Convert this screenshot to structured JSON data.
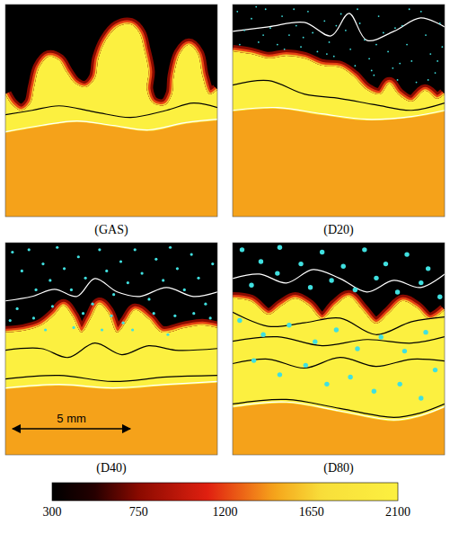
{
  "chart_data": {
    "type": "heatmap",
    "xlim": [
      0,
      9
    ],
    "ylim": [
      9,
      0
    ],
    "tick_labels": false,
    "temperature": {
      "unburnt": 300,
      "front": [
        1650,
        1200,
        750
      ],
      "burnt": 2100,
      "products": 1450
    },
    "colorbar": {
      "range": [
        300,
        2100
      ],
      "ticks": [
        300,
        750,
        1200,
        1650,
        2100
      ]
    },
    "scale_bar": {
      "length": 5,
      "label": "5 mm"
    },
    "panels": [
      {
        "title": "(GAS)",
        "front": {
          "x": [
            0,
            0.3,
            0.68,
            1.06,
            1.22,
            1.44,
            1.83,
            2.28,
            2.59,
            2.97,
            3.42,
            3.8,
            3.95,
            4.26,
            4.75,
            5.32,
            5.7,
            5.89,
            6.08,
            6.01,
            6.27,
            6.77,
            7.07,
            7.15,
            7.41,
            7.79,
            8.17,
            8.37,
            8.67,
            9
          ],
          "y": [
            3.8,
            4.26,
            4.49,
            4.18,
            3.5,
            2.66,
            2.21,
            2.36,
            2.85,
            3.35,
            3.5,
            3.12,
            2.28,
            1.52,
            0.95,
            0.84,
            1.22,
            1.9,
            2.85,
            3.61,
            4.18,
            4.26,
            3.8,
            3.04,
            2.09,
            1.71,
            2.09,
            3.04,
            3.8,
            3.61
          ]
        },
        "products_edge": {
          "x": [
            0,
            1.52,
            3.04,
            4.56,
            6.08,
            7.6,
            9
          ],
          "y": [
            5.45,
            5.18,
            4.99,
            5.18,
            5.37,
            5.07,
            4.92
          ]
        },
        "contours": [
          {
            "color": "black",
            "x": [
              0,
              1.14,
              2.28,
              3.8,
              5.32,
              6.84,
              7.98,
              9
            ],
            "y": [
              4.68,
              4.49,
              4.3,
              4.56,
              4.79,
              4.49,
              4.18,
              4.37
            ]
          },
          {
            "color": "white",
            "x": [
              0,
              1.52,
              3.04,
              4.56,
              6.08,
              7.6,
              9
            ],
            "y": [
              5.4,
              5.13,
              4.94,
              5.13,
              5.32,
              5.02,
              4.87
            ]
          }
        ]
      },
      {
        "title": "(D20)",
        "front": {
          "x": [
            0,
            0.76,
            1.52,
            2.28,
            3.04,
            3.8,
            4.56,
            5.13,
            5.7,
            6.27,
            6.65,
            7.03,
            7.6,
            8.17,
            8.67,
            9
          ],
          "y": [
            1.98,
            2.09,
            2.28,
            2.17,
            2.28,
            2.59,
            2.66,
            3.04,
            3.61,
            3.8,
            3.35,
            3.8,
            4.11,
            3.65,
            3.99,
            3.8
          ]
        },
        "products_edge": {
          "x": [
            0,
            1.9,
            3.8,
            5.7,
            7.6,
            9
          ],
          "y": [
            4.54,
            4.42,
            4.69,
            4.92,
            4.8,
            4.54
          ]
        },
        "contours": [
          {
            "color": "white",
            "x": [
              0,
              1.52,
              3.04,
              4.18,
              4.94,
              5.7,
              6.84,
              7.98,
              9
            ],
            "y": [
              1.14,
              0.95,
              0.76,
              1.33,
              0.38,
              1.52,
              1.14,
              0.57,
              0.95
            ]
          },
          {
            "color": "black",
            "x": [
              0,
              1.52,
              3.04,
              4.56,
              6.08,
              7.6,
              9
            ],
            "y": [
              3.42,
              3.23,
              3.8,
              3.99,
              4.26,
              4.49,
              4.18
            ]
          },
          {
            "color": "white",
            "x": [
              0,
              1.9,
              3.8,
              5.7,
              7.6,
              9
            ],
            "y": [
              4.49,
              4.37,
              4.64,
              4.87,
              4.75,
              4.49
            ]
          }
        ],
        "droplets": {
          "color": "#40e0e0",
          "marker": "small",
          "x": [
            0.2,
            0.5,
            0.8,
            1.1,
            1.4,
            1.6,
            1.9,
            2.1,
            2.4,
            2.7,
            2.9,
            3.2,
            3.4,
            3.6,
            3.9,
            4.1,
            4.3,
            4.6,
            4.8,
            5.0,
            5.2,
            5.4,
            5.6,
            5.8,
            6.0,
            6.2,
            6.4,
            6.6,
            6.8,
            7.0,
            7.2,
            7.4,
            7.6,
            7.8,
            8.0,
            8.2,
            8.4,
            8.6,
            8.8,
            8.9,
            0.3,
            1.0,
            2.2,
            3.0,
            4.4,
            5.3,
            6.1,
            6.9,
            7.5,
            8.3,
            5.9,
            7.1,
            8.7,
            4.0,
            2.6,
            1.3
          ],
          "y": [
            0.3,
            1.1,
            0.6,
            1.6,
            0.2,
            1.0,
            1.7,
            0.5,
            1.3,
            0.9,
            1.8,
            0.3,
            1.2,
            2.0,
            0.7,
            1.6,
            2.2,
            0.4,
            1.1,
            1.9,
            2.6,
            0.8,
            1.5,
            2.3,
            3.0,
            0.5,
            1.2,
            2.0,
            2.7,
            3.2,
            0.9,
            1.7,
            2.4,
            3.3,
            0.3,
            1.3,
            2.1,
            2.9,
            0.8,
            1.8,
            1.7,
            0.1,
            1.9,
            1.4,
            0.9,
            0.2,
            1.7,
            1.0,
            0.2,
            3.2,
            2.8,
            2.5,
            2.4,
            2.1,
            0.2,
            1.3
          ]
        }
      },
      {
        "title": "(D40)",
        "front": {
          "x": [
            0,
            0.76,
            1.52,
            2.09,
            2.47,
            2.85,
            3.23,
            3.61,
            3.99,
            4.37,
            4.75,
            5.13,
            5.51,
            6.08,
            6.65,
            7.6,
            8.37,
            9
          ],
          "y": [
            3.8,
            3.73,
            3.5,
            3.04,
            2.66,
            3.12,
            3.8,
            3.23,
            2.59,
            2.97,
            3.8,
            3.35,
            2.85,
            3.23,
            3.8,
            3.61,
            3.5,
            3.61
          ]
        },
        "products_edge": {
          "x": [
            0,
            2.28,
            4.56,
            6.84,
            9
          ],
          "y": [
            6.21,
            6.06,
            6.21,
            6.06,
            5.94
          ]
        },
        "contours": [
          {
            "color": "white",
            "x": [
              0,
              1.14,
              2.09,
              3.04,
              3.8,
              4.75,
              5.7,
              6.84,
              7.98,
              9
            ],
            "y": [
              2.47,
              2.28,
              1.98,
              2.28,
              1.52,
              2.09,
              2.28,
              1.9,
              2.28,
              2.09
            ]
          },
          {
            "color": "black",
            "x": [
              0,
              1.52,
              2.66,
              3.8,
              4.94,
              6.08,
              7.22,
              9
            ],
            "y": [
              4.56,
              4.49,
              4.87,
              4.26,
              4.75,
              4.37,
              4.56,
              4.49
            ]
          },
          {
            "color": "black",
            "x": [
              0,
              2.28,
              4.56,
              6.84,
              9
            ],
            "y": [
              5.78,
              5.63,
              5.89,
              5.7,
              5.63
            ]
          },
          {
            "color": "white",
            "x": [
              0,
              2.28,
              4.56,
              6.84,
              9
            ],
            "y": [
              6.16,
              6.01,
              6.16,
              6.01,
              5.89
            ]
          }
        ],
        "droplets": {
          "color": "#40e0e0",
          "marker": "medium",
          "x": [
            0.3,
            0.7,
            1.0,
            1.3,
            1.6,
            1.9,
            2.2,
            2.5,
            2.8,
            3.1,
            3.4,
            3.7,
            4.0,
            4.3,
            4.6,
            4.9,
            5.2,
            5.5,
            5.8,
            6.1,
            6.4,
            6.7,
            7.0,
            7.3,
            7.6,
            7.9,
            8.2,
            8.5,
            8.8,
            0.5,
            1.2,
            2.0,
            3.3,
            4.5,
            5.0,
            6.3,
            7.2,
            8.0,
            8.7,
            2.9,
            4.1,
            5.4,
            6.9,
            1.7,
            0.2
          ],
          "y": [
            0.4,
            1.2,
            0.3,
            2.0,
            0.9,
            1.6,
            0.2,
            1.1,
            2.0,
            0.6,
            1.5,
            2.6,
            0.3,
            1.2,
            2.2,
            0.8,
            1.7,
            0.3,
            1.3,
            2.4,
            0.7,
            1.6,
            0.2,
            1.1,
            2.0,
            0.5,
            1.5,
            2.6,
            0.9,
            2.8,
            3.2,
            2.7,
            3.0,
            3.1,
            3.4,
            3.0,
            3.1,
            3.0,
            3.2,
            3.6,
            3.7,
            3.7,
            3.9,
            3.7,
            3.3
          ]
        }
      },
      {
        "title": "(D80)",
        "front": {
          "x": [
            0,
            0.76,
            1.52,
            2.09,
            2.66,
            3.23,
            3.8,
            4.37,
            4.94,
            5.51,
            6.08,
            6.65,
            7.22,
            7.79,
            8.37,
            9
          ],
          "y": [
            2.36,
            2.47,
            3.04,
            2.66,
            2.36,
            2.66,
            3.23,
            2.66,
            2.28,
            2.85,
            3.42,
            2.97,
            2.47,
            2.74,
            3.23,
            2.85
          ]
        },
        "products_edge": {
          "x": [
            0,
            2.28,
            4.56,
            6.84,
            7.98,
            9
          ],
          "y": [
            7.0,
            6.81,
            7.19,
            7.57,
            7.38,
            7.0
          ]
        },
        "contours": [
          {
            "color": "white",
            "x": [
              0,
              1.14,
              2.28,
              3.42,
              4.56,
              5.7,
              6.84,
              7.98,
              9
            ],
            "y": [
              1.52,
              1.33,
              1.71,
              1.14,
              1.52,
              2.09,
              1.6,
              1.9,
              1.33
            ]
          },
          {
            "color": "black",
            "x": [
              0,
              1.52,
              3.04,
              4.56,
              6.08,
              7.6,
              9
            ],
            "y": [
              2.95,
              3.55,
              3.4,
              3.2,
              3.9,
              3.35,
              3.15
            ]
          },
          {
            "color": "black",
            "x": [
              0,
              1.9,
              3.8,
              5.7,
              7.6,
              9
            ],
            "y": [
              4.18,
              3.99,
              4.37,
              4.11,
              4.26,
              3.99
            ]
          },
          {
            "color": "black",
            "x": [
              0,
              1.52,
              3.04,
              4.56,
              6.08,
              7.6,
              9
            ],
            "y": [
              5.13,
              4.94,
              5.32,
              4.87,
              5.25,
              4.94,
              5.02
            ]
          },
          {
            "color": "black",
            "x": [
              0,
              2.28,
              4.56,
              6.84,
              7.98,
              9
            ],
            "y": [
              6.84,
              6.65,
              7.03,
              7.41,
              7.22,
              6.84
            ]
          },
          {
            "color": "white",
            "x": [
              0,
              2.28,
              4.56,
              6.84,
              7.98,
              9
            ],
            "y": [
              6.95,
              6.76,
              7.14,
              7.52,
              7.33,
              6.95
            ]
          }
        ],
        "droplets": {
          "color": "#40e0e0",
          "marker": "large",
          "x": [
            0.4,
            1.2,
            2.0,
            2.9,
            3.8,
            4.7,
            5.6,
            6.5,
            7.4,
            8.3,
            0.8,
            1.9,
            3.3,
            4.2,
            5.2,
            6.1,
            7.0,
            8.0,
            8.8,
            0.3,
            1.3,
            2.4,
            3.5,
            4.4,
            5.3,
            6.3,
            7.3,
            8.2,
            0.9,
            2.0,
            3.1,
            4.0,
            5.0,
            6.0,
            7.1,
            8.0,
            8.6
          ],
          "y": [
            0.3,
            0.8,
            0.2,
            0.9,
            0.4,
            1.0,
            0.3,
            0.9,
            0.5,
            1.1,
            1.8,
            1.3,
            1.9,
            1.6,
            2.0,
            1.5,
            2.1,
            1.7,
            2.3,
            3.3,
            3.9,
            3.5,
            4.2,
            3.7,
            4.5,
            4.0,
            4.6,
            3.8,
            5.0,
            5.6,
            5.2,
            6.0,
            5.7,
            6.3,
            6.0,
            6.6,
            5.4
          ]
        }
      }
    ]
  }
}
